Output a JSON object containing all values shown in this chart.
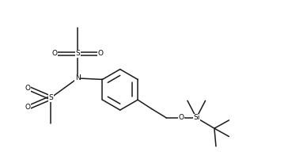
{
  "bg_color": "#ffffff",
  "line_color": "#1a1a1a",
  "lw": 1.1,
  "fs": 6.5,
  "figsize": [
    3.88,
    2.06
  ],
  "dpi": 100,
  "xlim": [
    -0.05,
    1.55
  ],
  "ylim": [
    0.05,
    1.05
  ]
}
